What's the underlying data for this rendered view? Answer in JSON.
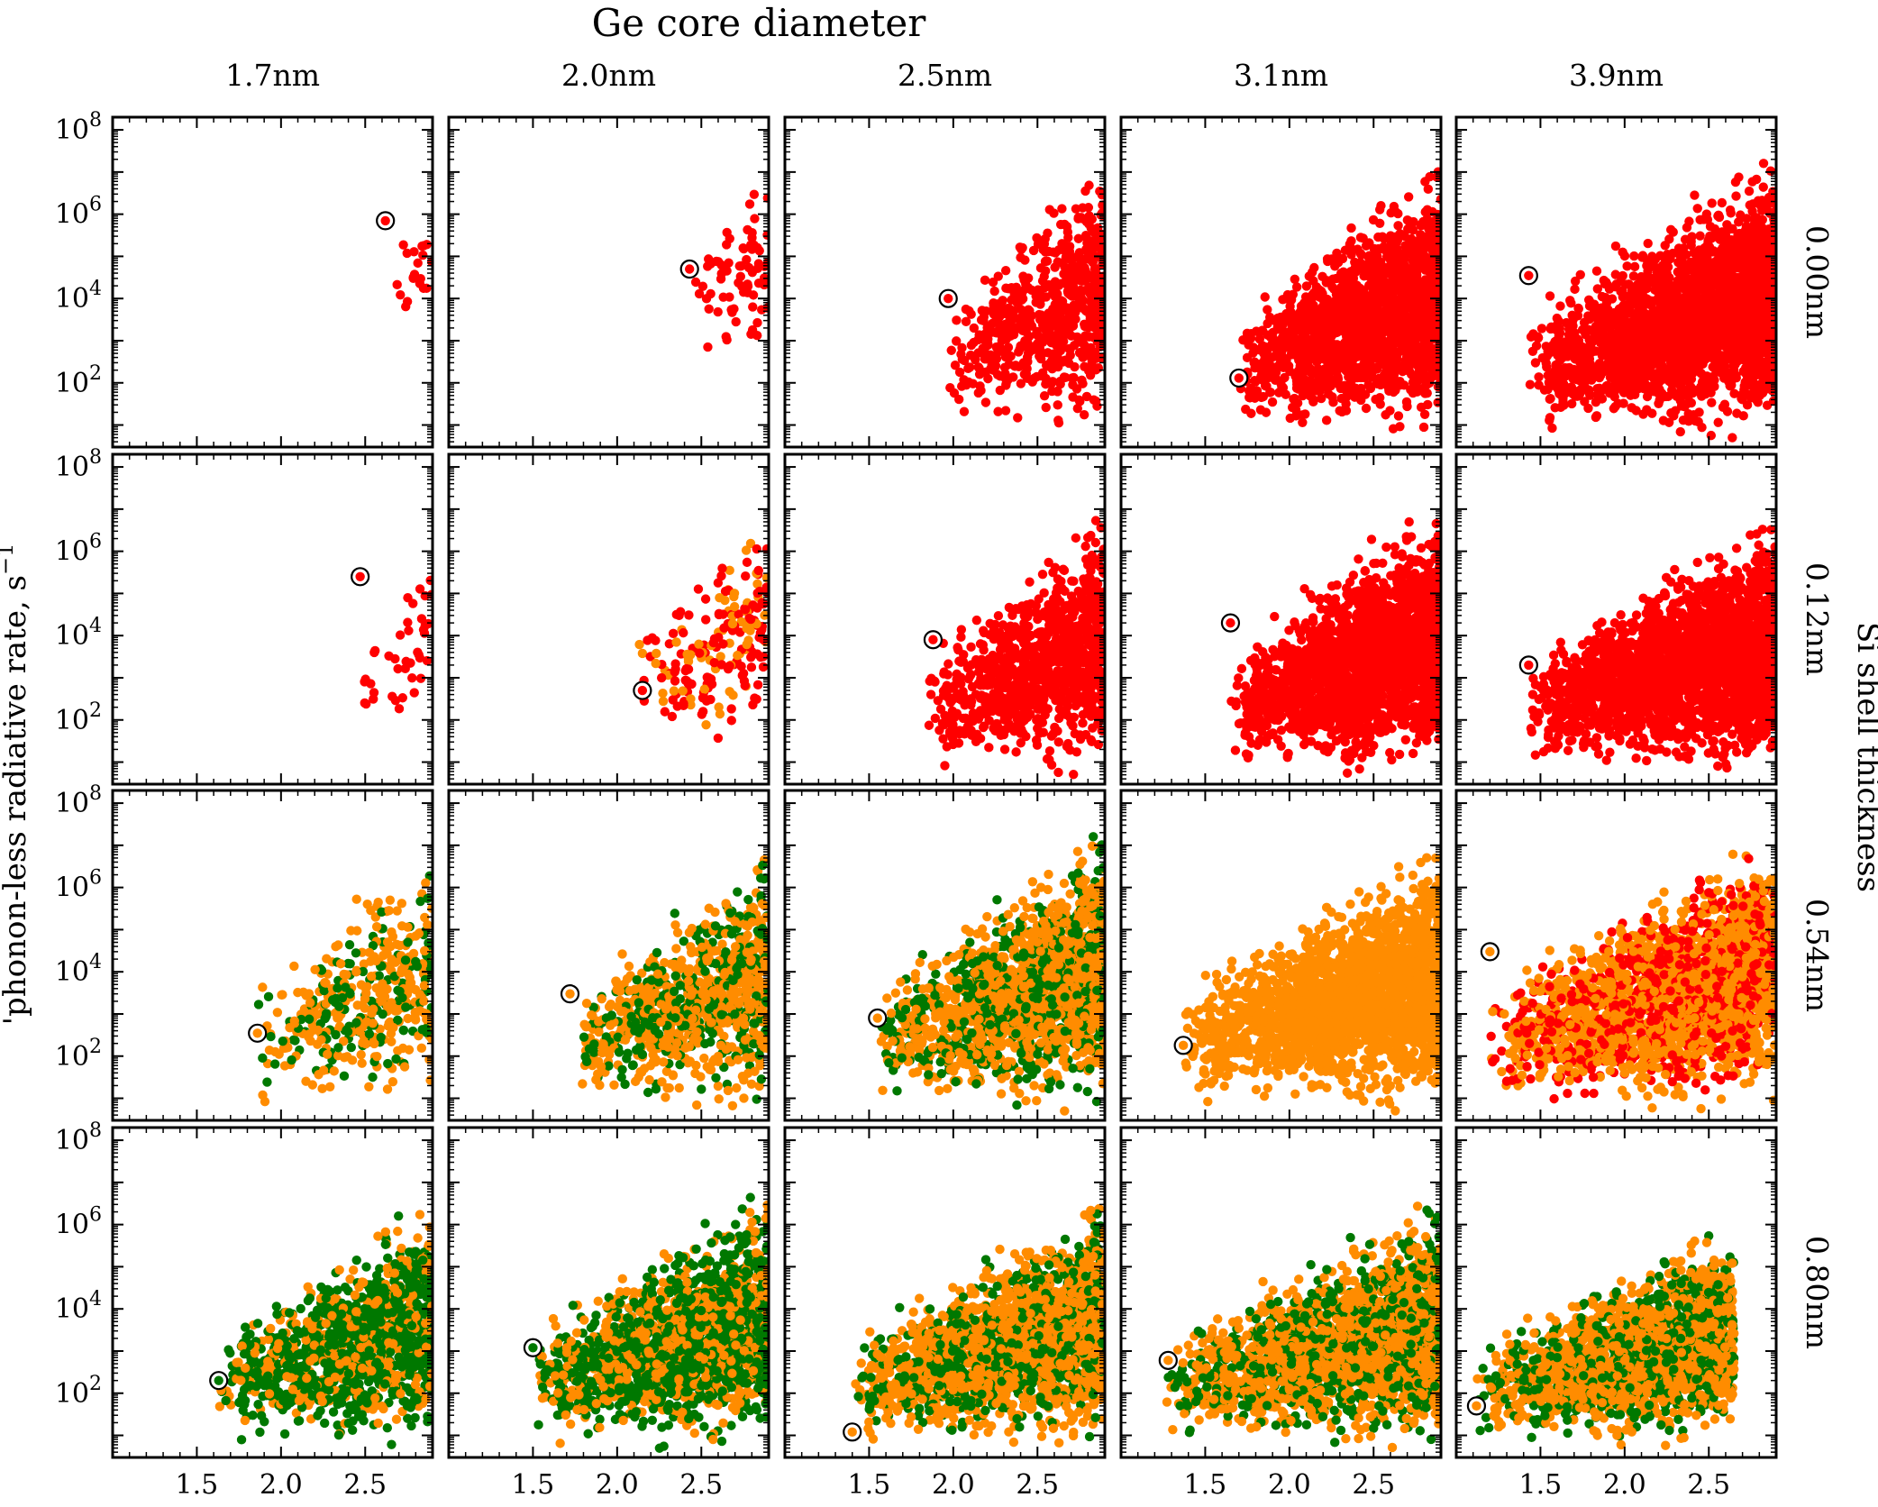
{
  "chart_data": {
    "type": "scatter",
    "title": "Ge core diameter",
    "ylabel": "'phonon-less radiative rate, s",
    "ylabel_exponent": "−1",
    "row_axis_label": "Si shell thickness",
    "columns": [
      "1.7nm",
      "2.0nm",
      "2.5nm",
      "3.1nm",
      "3.9nm"
    ],
    "rows": [
      "0.00nm",
      "0.12nm",
      "0.54nm",
      "0.80nm"
    ],
    "y_scale": "log",
    "xlim": [
      1.0,
      2.9
    ],
    "ylim": [
      3,
      200000000
    ],
    "x_ticks": [
      1.5,
      2.0,
      2.5
    ],
    "x_tick_labels": [
      "1.5",
      "2.0",
      "2.5"
    ],
    "y_ticks": [
      100,
      10000,
      1000000,
      100000000
    ],
    "y_tick_labels": [
      {
        "base": "10",
        "exp": "2"
      },
      {
        "base": "10",
        "exp": "4"
      },
      {
        "base": "10",
        "exp": "6"
      },
      {
        "base": "10",
        "exp": "8"
      }
    ],
    "grid": false,
    "colors": {
      "red": "#ff0000",
      "orange": "#ff8c00",
      "green": "#007800",
      "ring": "#000000"
    },
    "panels": [
      {
        "row": 0,
        "col": 0,
        "colors": [
          "red"
        ],
        "highlight": {
          "x": 2.62,
          "y": 700000,
          "color": "red"
        },
        "cluster": {
          "x_min": 2.6,
          "x_max": 2.9,
          "logy_min": 3.2,
          "logy_max": 6.7,
          "count": 20
        }
      },
      {
        "row": 0,
        "col": 1,
        "colors": [
          "red"
        ],
        "highlight": {
          "x": 2.43,
          "y": 50000,
          "color": "red"
        },
        "cluster": {
          "x_min": 2.4,
          "x_max": 2.9,
          "logy_min": 2.6,
          "logy_max": 7.3,
          "count": 75
        }
      },
      {
        "row": 0,
        "col": 2,
        "colors": [
          "red"
        ],
        "highlight": {
          "x": 1.97,
          "y": 10000,
          "color": "red"
        },
        "cluster": {
          "x_min": 1.95,
          "x_max": 2.9,
          "logy_min": 0.9,
          "logy_max": 7.5,
          "count": 650
        }
      },
      {
        "row": 0,
        "col": 3,
        "colors": [
          "red"
        ],
        "highlight": {
          "x": 1.7,
          "y": 130,
          "color": "red"
        },
        "cluster": {
          "x_min": 1.7,
          "x_max": 2.9,
          "logy_min": 0.8,
          "logy_max": 7.4,
          "count": 1700
        }
      },
      {
        "row": 0,
        "col": 4,
        "colors": [
          "red"
        ],
        "highlight": {
          "x": 1.43,
          "y": 35000,
          "color": "red"
        },
        "cluster": {
          "x_min": 1.43,
          "x_max": 2.9,
          "logy_min": 0.8,
          "logy_max": 7.5,
          "count": 2400
        }
      },
      {
        "row": 1,
        "col": 0,
        "colors": [
          "red"
        ],
        "highlight": {
          "x": 2.47,
          "y": 250000,
          "color": "red"
        },
        "cluster": {
          "x_min": 2.45,
          "x_max": 2.9,
          "logy_min": 1.5,
          "logy_max": 6.4,
          "count": 40
        }
      },
      {
        "row": 1,
        "col": 1,
        "colors": [
          "red",
          "orange"
        ],
        "highlight": {
          "x": 2.15,
          "y": 500,
          "color": "red"
        },
        "cluster": {
          "x_min": 2.05,
          "x_max": 2.9,
          "logy_min": 1.3,
          "logy_max": 7.5,
          "count": 210
        }
      },
      {
        "row": 1,
        "col": 2,
        "colors": [
          "red"
        ],
        "highlight": {
          "x": 1.88,
          "y": 8000,
          "color": "red"
        },
        "cluster": {
          "x_min": 1.85,
          "x_max": 2.9,
          "logy_min": 0.8,
          "logy_max": 7.0,
          "count": 1000
        }
      },
      {
        "row": 1,
        "col": 3,
        "colors": [
          "red"
        ],
        "highlight": {
          "x": 1.65,
          "y": 20000,
          "color": "red"
        },
        "cluster": {
          "x_min": 1.65,
          "x_max": 2.9,
          "logy_min": 0.8,
          "logy_max": 7.3,
          "count": 2000
        }
      },
      {
        "row": 1,
        "col": 4,
        "colors": [
          "red"
        ],
        "highlight": {
          "x": 1.43,
          "y": 2000,
          "color": "red"
        },
        "cluster": {
          "x_min": 1.43,
          "x_max": 2.9,
          "logy_min": 0.8,
          "logy_max": 7.0,
          "count": 2300
        }
      },
      {
        "row": 2,
        "col": 0,
        "colors": [
          "orange",
          "green"
        ],
        "highlight": {
          "x": 1.86,
          "y": 350,
          "color": "orange"
        },
        "cluster": {
          "x_min": 1.8,
          "x_max": 2.9,
          "logy_min": 0.8,
          "logy_max": 7.2,
          "count": 420
        }
      },
      {
        "row": 2,
        "col": 1,
        "colors": [
          "orange",
          "green"
        ],
        "highlight": {
          "x": 1.72,
          "y": 3000,
          "color": "orange"
        },
        "cluster": {
          "x_min": 1.7,
          "x_max": 2.9,
          "logy_min": 0.8,
          "logy_max": 7.1,
          "count": 900
        }
      },
      {
        "row": 2,
        "col": 2,
        "colors": [
          "orange",
          "green"
        ],
        "highlight": {
          "x": 1.55,
          "y": 800,
          "color": "orange"
        },
        "cluster": {
          "x_min": 1.55,
          "x_max": 2.9,
          "logy_min": 0.8,
          "logy_max": 7.5,
          "count": 1700
        }
      },
      {
        "row": 2,
        "col": 3,
        "colors": [
          "orange"
        ],
        "highlight": {
          "x": 1.37,
          "y": 180,
          "color": "orange"
        },
        "cluster": {
          "x_min": 1.37,
          "x_max": 2.9,
          "logy_min": 0.8,
          "logy_max": 7.2,
          "count": 2100
        }
      },
      {
        "row": 2,
        "col": 4,
        "colors": [
          "orange",
          "red"
        ],
        "highlight": {
          "x": 1.2,
          "y": 30000,
          "color": "orange"
        },
        "cluster": {
          "x_min": 1.2,
          "x_max": 2.9,
          "logy_min": 0.8,
          "logy_max": 7.4,
          "count": 2300
        }
      },
      {
        "row": 3,
        "col": 0,
        "colors": [
          "green",
          "orange"
        ],
        "highlight": {
          "x": 1.63,
          "y": 200,
          "color": "green"
        },
        "cluster": {
          "x_min": 1.62,
          "x_max": 2.9,
          "logy_min": 0.8,
          "logy_max": 6.8,
          "count": 1300
        }
      },
      {
        "row": 3,
        "col": 1,
        "colors": [
          "green",
          "orange"
        ],
        "highlight": {
          "x": 1.5,
          "y": 1200,
          "color": "green"
        },
        "cluster": {
          "x_min": 1.5,
          "x_max": 2.9,
          "logy_min": 0.8,
          "logy_max": 6.9,
          "count": 1800
        }
      },
      {
        "row": 3,
        "col": 2,
        "colors": [
          "orange",
          "green"
        ],
        "highlight": {
          "x": 1.4,
          "y": 12,
          "color": "orange"
        },
        "cluster": {
          "x_min": 1.38,
          "x_max": 2.9,
          "logy_min": 0.8,
          "logy_max": 6.8,
          "count": 2000
        }
      },
      {
        "row": 3,
        "col": 3,
        "colors": [
          "orange",
          "green"
        ],
        "highlight": {
          "x": 1.28,
          "y": 600,
          "color": "orange"
        },
        "cluster": {
          "x_min": 1.27,
          "x_max": 2.9,
          "logy_min": 0.8,
          "logy_max": 6.6,
          "count": 2200
        }
      },
      {
        "row": 3,
        "col": 4,
        "colors": [
          "orange",
          "green"
        ],
        "highlight": {
          "x": 1.12,
          "y": 50,
          "color": "orange"
        },
        "cluster": {
          "x_min": 1.1,
          "x_max": 2.65,
          "logy_min": 0.8,
          "logy_max": 6.1,
          "count": 2000
        }
      }
    ]
  }
}
